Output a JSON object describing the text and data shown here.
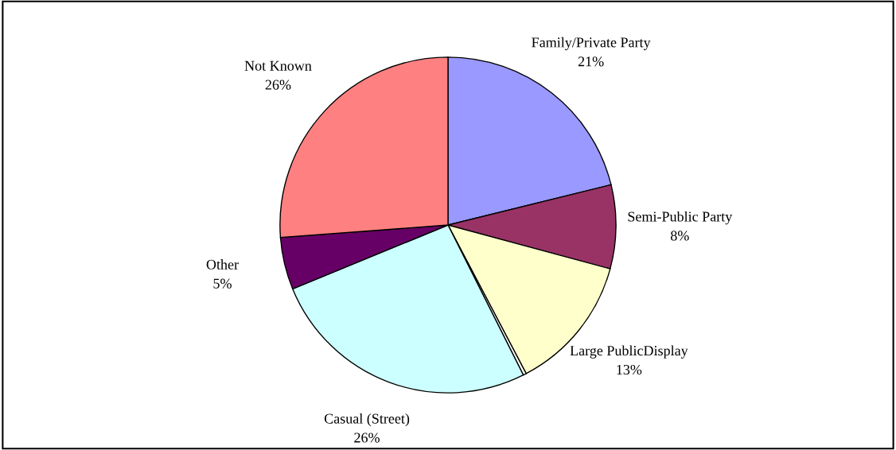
{
  "chart_data": {
    "type": "pie",
    "categories": [
      "Family/Private Party",
      "Semi-Public Party",
      "Large PublicDisplay",
      null,
      "Casual (Street)",
      "Other",
      "Not Known"
    ],
    "values": [
      21,
      8,
      13,
      0.3,
      26,
      5,
      26
    ],
    "value_labels": [
      "21%",
      "8%",
      "13%",
      null,
      "26%",
      "5%",
      "26%"
    ],
    "colors": [
      "#9999ff",
      "#993366",
      "#ffffcc",
      "#ffffff",
      "#ccffff",
      "#660066",
      "#ff8080"
    ],
    "legend": false
  }
}
